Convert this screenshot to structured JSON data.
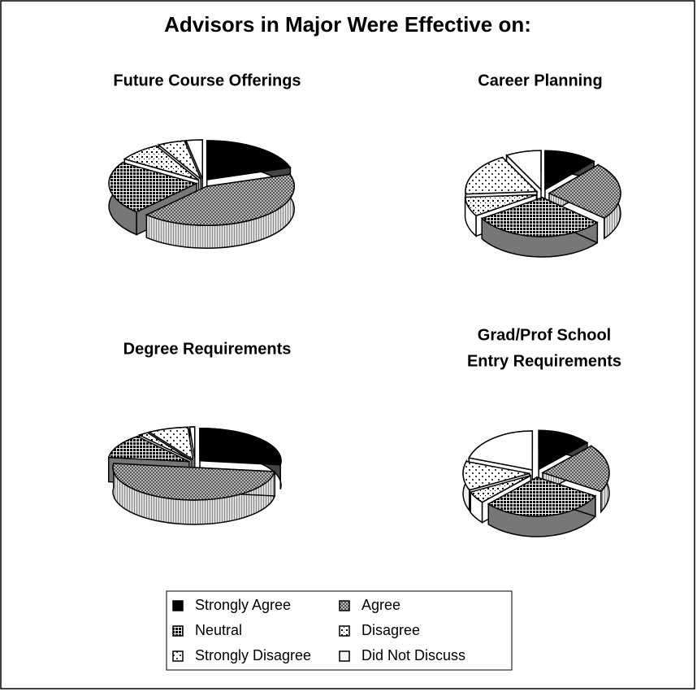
{
  "title": "Advisors in Major Were Effective on:",
  "categories": [
    "Strongly Agree",
    "Agree",
    "Neutral",
    "Disagree",
    "Strongly Disagree",
    "Did Not Discuss"
  ],
  "chart_data": [
    {
      "type": "pie",
      "title": [
        "Future Course Offerings"
      ],
      "values": [
        20,
        42,
        22,
        8,
        5,
        3
      ]
    },
    {
      "type": "pie",
      "title": [
        "Career Planning"
      ],
      "values": [
        12,
        24,
        30,
        8,
        18,
        8
      ]
    },
    {
      "type": "pie",
      "title": [
        "Degree Requirements"
      ],
      "values": [
        27,
        50,
        12,
        2,
        8,
        1
      ]
    },
    {
      "type": "pie",
      "title": [
        "Grad/Prof School",
        "Entry Requirements"
      ],
      "values": [
        13,
        20,
        30,
        5,
        12,
        20
      ]
    }
  ]
}
